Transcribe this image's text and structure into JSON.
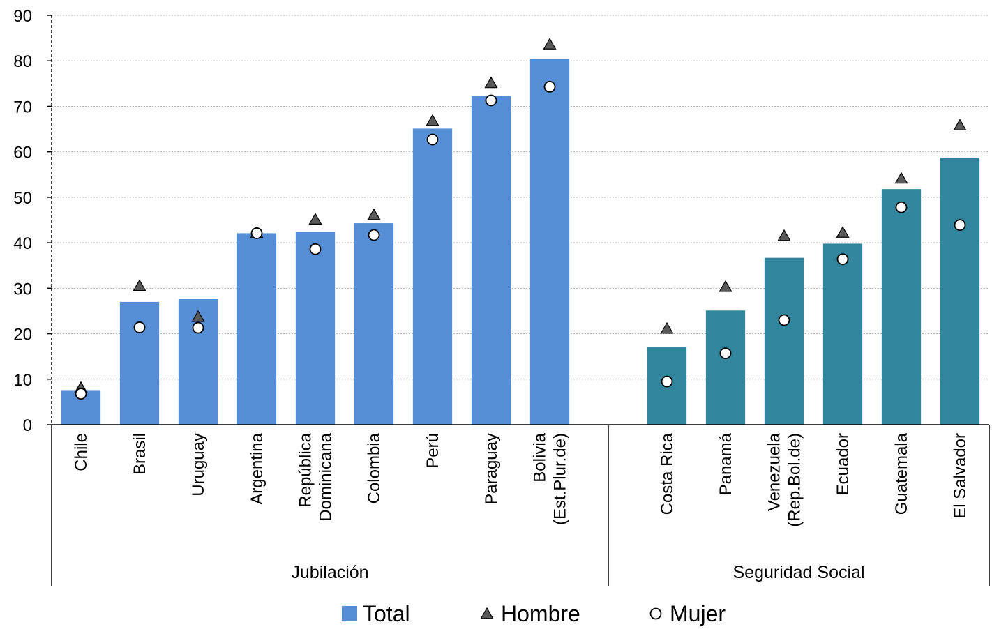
{
  "chart_data": {
    "type": "bar",
    "ylim": [
      0,
      90
    ],
    "yticks": [
      "0",
      "10",
      "20",
      "30",
      "40",
      "50",
      "60",
      "70",
      "80",
      "90"
    ],
    "grid": true,
    "legend_position": "bottom",
    "groups": [
      {
        "label": "Jubilación",
        "color": "#558ed5",
        "categories": [
          {
            "lines": [
              "Chile"
            ],
            "total": 7.6,
            "hombre": 8.0,
            "mujer": 6.8
          },
          {
            "lines": [
              "Brasil"
            ],
            "total": 27.0,
            "hombre": 30.4,
            "mujer": 21.4
          },
          {
            "lines": [
              "Uruguay"
            ],
            "total": 27.6,
            "hombre": 23.6,
            "mujer": 21.3
          },
          {
            "lines": [
              "Argentina"
            ],
            "total": 42.1,
            "hombre": 42.0,
            "mujer": 42.1
          },
          {
            "lines": [
              "República",
              "Dominicana"
            ],
            "total": 42.4,
            "hombre": 45.0,
            "mujer": 38.6
          },
          {
            "lines": [
              "Colombia"
            ],
            "total": 44.3,
            "hombre": 46.0,
            "mujer": 41.7
          },
          {
            "lines": [
              "Perú"
            ],
            "total": 65.1,
            "hombre": 66.7,
            "mujer": 62.7
          },
          {
            "lines": [
              "Paraguay"
            ],
            "total": 72.3,
            "hombre": 75.0,
            "mujer": 71.3
          },
          {
            "lines": [
              "Bolivia",
              "(Est.Plur.de)"
            ],
            "total": 80.4,
            "hombre": 83.5,
            "mujer": 74.3
          }
        ]
      },
      {
        "label": "Seguridad Social",
        "color": "#31859c",
        "categories": [
          {
            "lines": [
              "Costa Rica"
            ],
            "total": 17.1,
            "hombre": 21.0,
            "mujer": 9.5
          },
          {
            "lines": [
              "Panamá"
            ],
            "total": 25.1,
            "hombre": 30.2,
            "mujer": 15.7
          },
          {
            "lines": [
              "Venezuela",
              "(Rep.Bol.de)"
            ],
            "total": 36.7,
            "hombre": 41.4,
            "mujer": 23.0
          },
          {
            "lines": [
              "Ecuador"
            ],
            "total": 39.8,
            "hombre": 42.1,
            "mujer": 36.4
          },
          {
            "lines": [
              "Guatemala"
            ],
            "total": 51.8,
            "hombre": 54.0,
            "mujer": 47.8
          },
          {
            "lines": [
              "El Salvador"
            ],
            "total": 58.7,
            "hombre": 65.7,
            "mujer": 43.9
          }
        ]
      }
    ],
    "series": [
      {
        "key": "total",
        "name": "Total",
        "mark": "bar"
      },
      {
        "key": "hombre",
        "name": "Hombre",
        "mark": "triangle",
        "color": "#595959"
      },
      {
        "key": "mujer",
        "name": "Mujer",
        "mark": "circle",
        "color": "#ffffff"
      }
    ]
  }
}
